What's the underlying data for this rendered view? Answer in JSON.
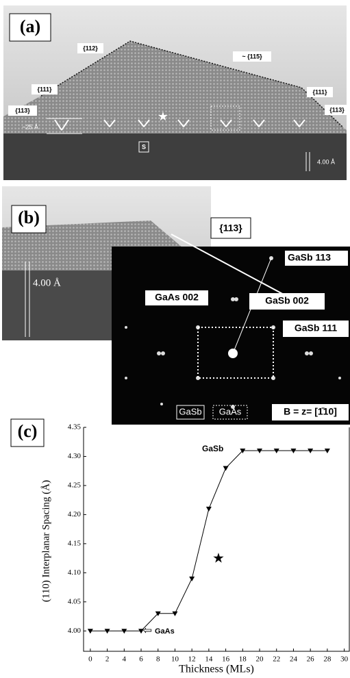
{
  "panel_a": {
    "label": "(a)",
    "annotations": [
      "{112}",
      "~ {115}",
      "{111}",
      "{111}",
      "{113}",
      "{113}",
      "~25 Å",
      "S",
      "4.00 Å"
    ]
  },
  "panel_b": {
    "label": "(b)",
    "annotations": [
      "{113}",
      "4.00 Å",
      "GaSb 113",
      "GaAs 002",
      "GaSb 002",
      "GaSb 111",
      "GaSb",
      "GaAs",
      "B = z= [1̄10]"
    ]
  },
  "chart_data": {
    "type": "line",
    "label": "(c)",
    "x_label": "Thickness (MLs)",
    "y_label": "(110) Interplanar Spacing (Å)",
    "x": [
      0,
      2,
      4,
      6,
      8,
      10,
      12,
      14,
      16,
      18,
      20,
      22,
      24,
      26,
      28
    ],
    "series": [
      {
        "color": "#000000",
        "values": [
          4.0,
          4.0,
          4.0,
          4.0,
          4.03,
          4.03,
          4.09,
          4.21,
          4.28,
          4.31,
          4.31,
          4.31,
          4.31,
          4.31,
          4.31
        ]
      }
    ],
    "annotations": [
      "GaSb",
      "GaAs"
    ],
    "xlim": [
      -0.8,
      30.6
    ],
    "ylim": [
      3.965,
      4.35
    ],
    "xticks": [
      0,
      2,
      4,
      6,
      8,
      10,
      12,
      14,
      16,
      18,
      20,
      22,
      24,
      26,
      28,
      30
    ],
    "yticks": [
      {
        "value": 4.0,
        "label": "4.00"
      },
      {
        "value": 4.05,
        "label": "4.05"
      },
      {
        "value": 4.1,
        "label": "4.10"
      },
      {
        "value": 4.15,
        "label": "4.15"
      },
      {
        "value": 4.2,
        "label": "4.20"
      },
      {
        "value": 4.25,
        "label": "4.25"
      },
      {
        "value": 4.3,
        "label": "4.30"
      },
      {
        "value": 4.35,
        "label": "4.35"
      }
    ]
  }
}
